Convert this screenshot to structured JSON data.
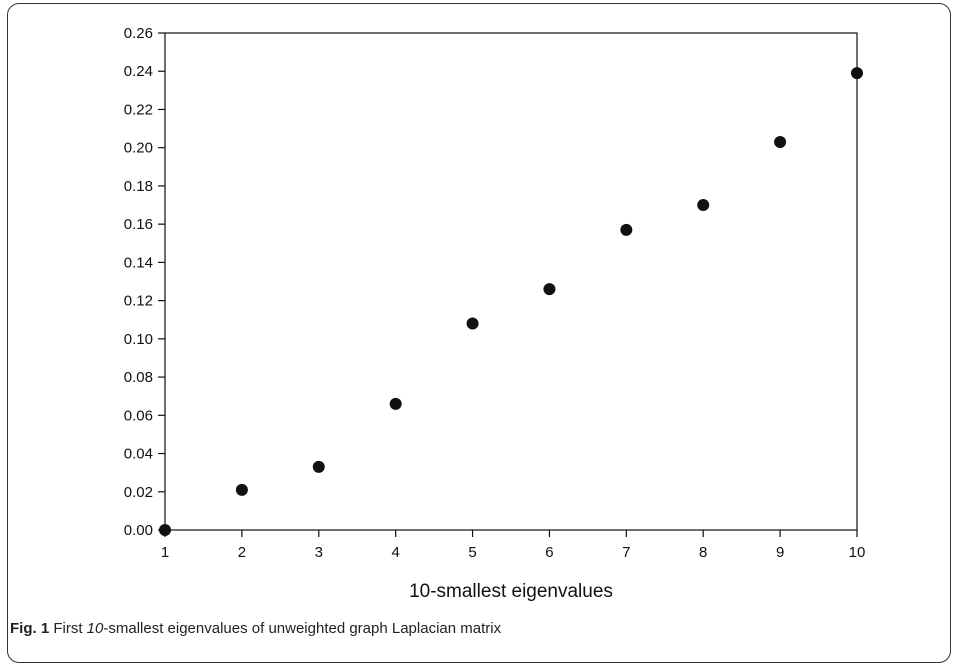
{
  "caption": {
    "fig_label": "Fig. 1",
    "text_before": "First ",
    "text_italic": "10",
    "text_after": "-smallest eigenvalues of unweighted graph Laplacian matrix"
  },
  "chart_data": {
    "type": "scatter",
    "title": "",
    "xlabel": "10-smallest eigenvalues",
    "ylabel": "",
    "xlim": [
      1,
      10
    ],
    "ylim": [
      0,
      0.26
    ],
    "x_ticks": [
      "1",
      "2",
      "3",
      "4",
      "5",
      "6",
      "7",
      "8",
      "9",
      "10"
    ],
    "y_ticks": [
      "0.00",
      "0.02",
      "0.04",
      "0.06",
      "0.08",
      "0.10",
      "0.12",
      "0.14",
      "0.16",
      "0.18",
      "0.20",
      "0.22",
      "0.24",
      "0.26"
    ],
    "grid": false,
    "marker_color": "#111111",
    "series": [
      {
        "x": [
          1,
          2,
          3,
          4,
          5,
          6,
          7,
          8,
          9,
          10
        ],
        "y": [
          0.0,
          0.021,
          0.033,
          0.066,
          0.108,
          0.126,
          0.157,
          0.17,
          0.203,
          0.239
        ]
      }
    ]
  }
}
